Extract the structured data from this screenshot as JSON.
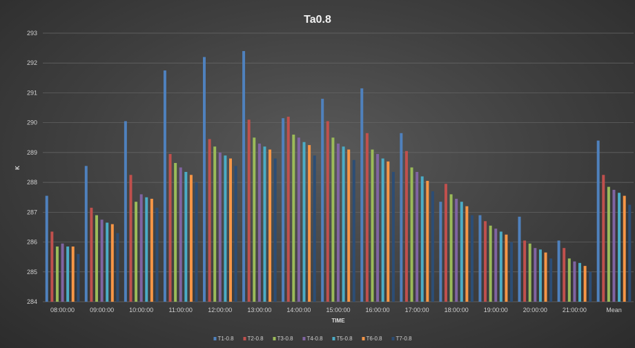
{
  "chart_data": {
    "type": "bar",
    "title": "Ta0.8",
    "xlabel": "TIME",
    "ylabel": "K",
    "ylim": [
      284,
      293
    ],
    "yticks": [
      284,
      285,
      286,
      287,
      288,
      289,
      290,
      291,
      292,
      293
    ],
    "grid": true,
    "legend_position": "bottom",
    "categories": [
      "08:00:00",
      "09:00:00",
      "10:00:00",
      "11:00:00",
      "12:00:00",
      "13:00:00",
      "14:00:00",
      "15:00:00",
      "16:00:00",
      "17:00:00",
      "18:00:00",
      "19:00:00",
      "20:00:00",
      "21:00:00",
      "Mean"
    ],
    "series": [
      {
        "name": "T1-0.8",
        "color": "#4f81bd",
        "values": [
          287.55,
          288.55,
          290.05,
          291.75,
          292.2,
          292.4,
          290.15,
          290.8,
          291.15,
          289.65,
          287.35,
          286.9,
          286.85,
          286.05,
          289.4
        ]
      },
      {
        "name": "T2-0.8",
        "color": "#c0504d",
        "values": [
          286.35,
          287.15,
          288.25,
          288.95,
          289.45,
          290.1,
          290.2,
          290.05,
          289.65,
          289.05,
          287.95,
          286.7,
          286.05,
          285.8,
          288.25
        ]
      },
      {
        "name": "T3-0.8",
        "color": "#9bbb59",
        "values": [
          285.85,
          286.9,
          287.35,
          288.65,
          289.2,
          289.5,
          289.6,
          289.5,
          289.1,
          288.5,
          287.6,
          286.55,
          285.95,
          285.45,
          287.85
        ]
      },
      {
        "name": "T4-0.8",
        "color": "#8064a2",
        "values": [
          285.95,
          286.75,
          287.6,
          288.5,
          289.0,
          289.3,
          289.5,
          289.3,
          288.95,
          288.35,
          287.45,
          286.45,
          285.8,
          285.35,
          287.75
        ]
      },
      {
        "name": "T5-0.8",
        "color": "#4bacc6",
        "values": [
          285.85,
          286.65,
          287.5,
          288.35,
          288.9,
          289.2,
          289.35,
          289.2,
          288.8,
          288.2,
          287.35,
          286.35,
          285.75,
          285.3,
          287.65
        ]
      },
      {
        "name": "T6-0.8",
        "color": "#f79646",
        "values": [
          285.85,
          286.6,
          287.45,
          288.25,
          288.8,
          289.1,
          289.25,
          289.1,
          288.7,
          288.05,
          287.2,
          286.25,
          285.65,
          285.2,
          287.55
        ]
      },
      {
        "name": "T7-0.8",
        "color": "#2c4d75",
        "values": [
          285.6,
          286.3,
          287.15,
          288.0,
          288.55,
          288.8,
          288.9,
          288.75,
          288.35,
          287.7,
          286.9,
          286.0,
          285.45,
          285.0,
          287.25
        ]
      }
    ]
  }
}
